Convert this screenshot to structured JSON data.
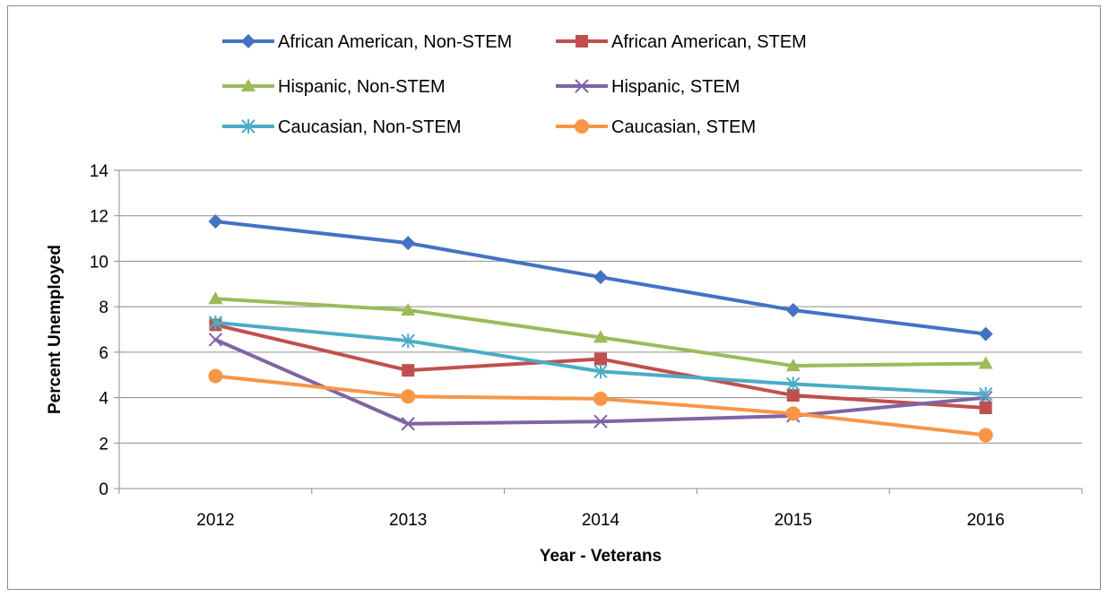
{
  "chart_data": {
    "type": "line",
    "title": "",
    "xlabel": "Year - Veterans",
    "ylabel": "Percent Unemployed",
    "ylim": [
      0,
      14
    ],
    "yticks": [
      0,
      2,
      4,
      6,
      8,
      10,
      12,
      14
    ],
    "grid": "horizontal",
    "legend_position": "top",
    "categories": [
      "2012",
      "2013",
      "2014",
      "2015",
      "2016"
    ],
    "series": [
      {
        "name": "African American, Non-STEM",
        "color": "#4472C4",
        "marker": "diamond",
        "values": [
          11.75,
          10.8,
          9.3,
          7.85,
          6.8
        ]
      },
      {
        "name": "African American, STEM",
        "color": "#C0504D",
        "marker": "square",
        "values": [
          7.2,
          5.2,
          5.7,
          4.1,
          3.55
        ]
      },
      {
        "name": "Hispanic, Non-STEM",
        "color": "#9BBB59",
        "marker": "triangle",
        "values": [
          8.35,
          7.85,
          6.65,
          5.4,
          5.5
        ]
      },
      {
        "name": "Hispanic, STEM",
        "color": "#8064A2",
        "marker": "x",
        "values": [
          6.55,
          2.85,
          2.95,
          3.2,
          4.0
        ]
      },
      {
        "name": "Caucasian, Non-STEM",
        "color": "#4BACC6",
        "marker": "star",
        "values": [
          7.3,
          6.5,
          5.15,
          4.6,
          4.15
        ]
      },
      {
        "name": "Caucasian, STEM",
        "color": "#F79646",
        "marker": "circle",
        "values": [
          4.95,
          4.05,
          3.95,
          3.3,
          2.35
        ]
      }
    ]
  }
}
